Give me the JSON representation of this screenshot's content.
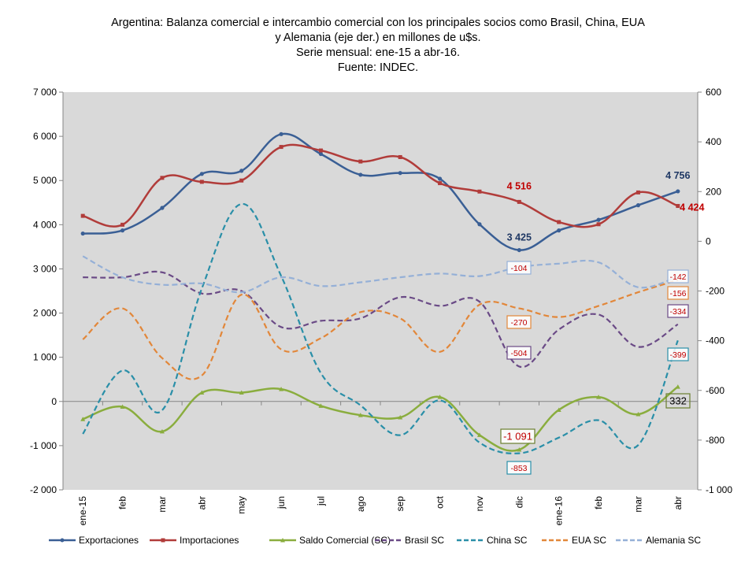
{
  "chart_data": {
    "type": "line",
    "title_lines": [
      "Argentina: Balanza comercial e intercambio comercial con los principales socios como Brasil, China, EUA",
      "y Alemania (eje der.) en millones de u$s.",
      "Serie mensual: ene-15 a abr-16.",
      "Fuente: INDEC."
    ],
    "categories": [
      "ene-15",
      "feb",
      "mar",
      "abr",
      "may",
      "jun",
      "jul",
      "ago",
      "sep",
      "oct",
      "nov",
      "dic",
      "ene-16",
      "feb",
      "mar",
      "abr"
    ],
    "left_axis": {
      "min": -2000,
      "max": 7000,
      "step": 1000,
      "tick_labels": [
        "-2 000",
        "-1 000",
        "0",
        "1 000",
        "2 000",
        "3 000",
        "4 000",
        "5 000",
        "6 000",
        "7 000"
      ]
    },
    "right_axis": {
      "min": -1000,
      "max": 600,
      "step": 200,
      "tick_labels": [
        "-1 000",
        "-800",
        "-600",
        "-400",
        "-200",
        "0",
        "200",
        "400",
        "600"
      ]
    },
    "grid": false,
    "plot_background": "#d9d9d9",
    "legend_position": "bottom",
    "series": [
      {
        "name": "Exportaciones",
        "axis": "left",
        "color": "#3a5f95",
        "dash": "solid",
        "marker": "dot",
        "values": [
          3800,
          3870,
          4380,
          5150,
          5220,
          6050,
          5600,
          5130,
          5170,
          5040,
          4010,
          3425,
          3870,
          4110,
          4440,
          4756
        ]
      },
      {
        "name": "Importaciones",
        "axis": "left",
        "color": "#b13c3a",
        "dash": "solid",
        "marker": "square",
        "values": [
          4200,
          4000,
          5060,
          4970,
          5000,
          5760,
          5680,
          5430,
          5530,
          4940,
          4750,
          4516,
          4060,
          4010,
          4730,
          4424
        ]
      },
      {
        "name": "Saldo Comercial (SC)",
        "axis": "left",
        "color": "#8aad3e",
        "dash": "solid",
        "marker": "triangle",
        "values": [
          -400,
          -120,
          -680,
          200,
          200,
          280,
          -100,
          -310,
          -360,
          100,
          -760,
          -1091,
          -190,
          100,
          -290,
          332
        ]
      },
      {
        "name": "Brasil SC",
        "axis": "right",
        "color": "#6a4a86",
        "dash": "dash",
        "values": [
          -145,
          -145,
          -125,
          -210,
          -200,
          -345,
          -320,
          -310,
          -225,
          -260,
          -243,
          -504,
          -355,
          -295,
          -425,
          -334
        ]
      },
      {
        "name": "China SC",
        "axis": "right",
        "color": "#2a8fa8",
        "dash": "dash",
        "values": [
          -775,
          -520,
          -680,
          -190,
          150,
          -140,
          -530,
          -660,
          -780,
          -640,
          -810,
          -853,
          -790,
          -720,
          -820,
          -399
        ]
      },
      {
        "name": "EUA SC",
        "axis": "right",
        "color": "#e2873a",
        "dash": "dash",
        "values": [
          -395,
          -270,
          -470,
          -540,
          -215,
          -435,
          -390,
          -285,
          -310,
          -445,
          -255,
          -270,
          -305,
          -260,
          -205,
          -156
        ]
      },
      {
        "name": "Alemania SC",
        "axis": "right",
        "color": "#95b0d7",
        "dash": "dash",
        "values": [
          -60,
          -145,
          -175,
          -170,
          -205,
          -145,
          -180,
          -165,
          -145,
          -130,
          -140,
          -104,
          -90,
          -85,
          -185,
          -142
        ]
      }
    ],
    "annotations": [
      {
        "text": "4 516",
        "series": "Importaciones",
        "index": 11,
        "color": "#c00000",
        "style": "bold"
      },
      {
        "text": "3 425",
        "series": "Exportaciones",
        "index": 11,
        "color": "#1f3864",
        "style": "bold"
      },
      {
        "text": "4 756",
        "series": "Exportaciones",
        "index": 15,
        "color": "#1f3864",
        "style": "bold"
      },
      {
        "text": "4 424",
        "series": "Importaciones",
        "index": 15,
        "color": "#c00000",
        "style": "bold"
      },
      {
        "text": "-1 091",
        "series": "Saldo Comercial (SC)",
        "index": 11,
        "color": "#c00000",
        "style": "box",
        "border": "#6a7f2e"
      },
      {
        "text": "332",
        "series": "Saldo Comercial (SC)",
        "index": 15,
        "color": "#000000",
        "style": "box",
        "border": "#6a7f2e"
      },
      {
        "text": "-104",
        "series": "Alemania SC",
        "index": 11,
        "color": "#c00000",
        "style": "box",
        "border": "#95b0d7"
      },
      {
        "text": "-270",
        "series": "EUA SC",
        "index": 11,
        "color": "#c00000",
        "style": "box",
        "border": "#e2873a"
      },
      {
        "text": "-504",
        "series": "Brasil SC",
        "index": 11,
        "color": "#c00000",
        "style": "box",
        "border": "#6a4a86"
      },
      {
        "text": "-853",
        "series": "China SC",
        "index": 11,
        "color": "#c00000",
        "style": "box",
        "border": "#2a8fa8"
      },
      {
        "text": "-142",
        "series": "Alemania SC",
        "index": 15,
        "color": "#c00000",
        "style": "box",
        "border": "#95b0d7"
      },
      {
        "text": "-156",
        "series": "EUA SC",
        "index": 15,
        "color": "#c00000",
        "style": "box",
        "border": "#e2873a"
      },
      {
        "text": "-334",
        "series": "Brasil SC",
        "index": 15,
        "color": "#c00000",
        "style": "box",
        "border": "#6a4a86"
      },
      {
        "text": "-399",
        "series": "China SC",
        "index": 15,
        "color": "#c00000",
        "style": "box",
        "border": "#2a8fa8"
      }
    ]
  }
}
